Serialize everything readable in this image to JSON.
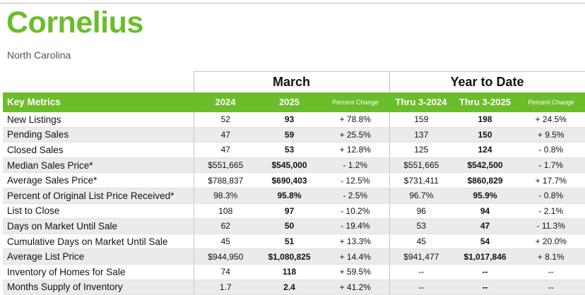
{
  "header": {
    "town": "Cornelius",
    "state": "North Carolina"
  },
  "groups": {
    "month": "March",
    "ytd": "Year to Date"
  },
  "columns": {
    "label": "Key Metrics",
    "y1": "2024",
    "y2": "2025",
    "pc": "Percent Change",
    "ytd1": "Thru 3-2024",
    "ytd2": "Thru 3-2025",
    "ytdpc": "Percent Change"
  },
  "rows": [
    {
      "label": "New Listings",
      "y1": "52",
      "y2": "93",
      "pc": "+ 78.8%",
      "ytd1": "159",
      "ytd2": "198",
      "ytdpc": "+ 24.5%"
    },
    {
      "label": "Pending Sales",
      "y1": "47",
      "y2": "59",
      "pc": "+ 25.5%",
      "ytd1": "137",
      "ytd2": "150",
      "ytdpc": "+ 9.5%"
    },
    {
      "label": "Closed Sales",
      "y1": "47",
      "y2": "53",
      "pc": "+ 12.8%",
      "ytd1": "125",
      "ytd2": "124",
      "ytdpc": "- 0.8%"
    },
    {
      "label": "Median Sales Price*",
      "y1": "$551,665",
      "y2": "$545,000",
      "pc": "- 1.2%",
      "ytd1": "$551,665",
      "ytd2": "$542,500",
      "ytdpc": "- 1.7%"
    },
    {
      "label": "Average Sales Price*",
      "y1": "$788,837",
      "y2": "$690,403",
      "pc": "- 12.5%",
      "ytd1": "$731,411",
      "ytd2": "$860,829",
      "ytdpc": "+ 17.7%"
    },
    {
      "label": "Percent of Original List Price Received*",
      "y1": "98.3%",
      "y2": "95.8%",
      "pc": "- 2.5%",
      "ytd1": "96.7%",
      "ytd2": "95.9%",
      "ytdpc": "- 0.8%"
    },
    {
      "label": "List to Close",
      "y1": "108",
      "y2": "97",
      "pc": "- 10.2%",
      "ytd1": "96",
      "ytd2": "94",
      "ytdpc": "- 2.1%"
    },
    {
      "label": "Days on Market Until Sale",
      "y1": "62",
      "y2": "50",
      "pc": "- 19.4%",
      "ytd1": "53",
      "ytd2": "47",
      "ytdpc": "- 11.3%"
    },
    {
      "label": "Cumulative Days on Market Until Sale",
      "y1": "45",
      "y2": "51",
      "pc": "+ 13.3%",
      "ytd1": "45",
      "ytd2": "54",
      "ytdpc": "+ 20.0%"
    },
    {
      "label": "Average List Price",
      "y1": "$944,950",
      "y2": "$1,080,825",
      "pc": "+ 14.4%",
      "ytd1": "$941,477",
      "ytd2": "$1,017,846",
      "ytdpc": "+ 8.1%"
    },
    {
      "label": "Inventory of Homes for Sale",
      "y1": "74",
      "y2": "118",
      "pc": "+ 59.5%",
      "ytd1": "--",
      "ytd2": "--",
      "ytdpc": "--"
    },
    {
      "label": "Months Supply of Inventory",
      "y1": "1.7",
      "y2": "2.4",
      "pc": "+ 41.2%",
      "ytd1": "--",
      "ytd2": "--",
      "ytdpc": "--"
    }
  ],
  "colors": {
    "accent": "#6cbd2b",
    "row_alt": "#ebebeb"
  }
}
